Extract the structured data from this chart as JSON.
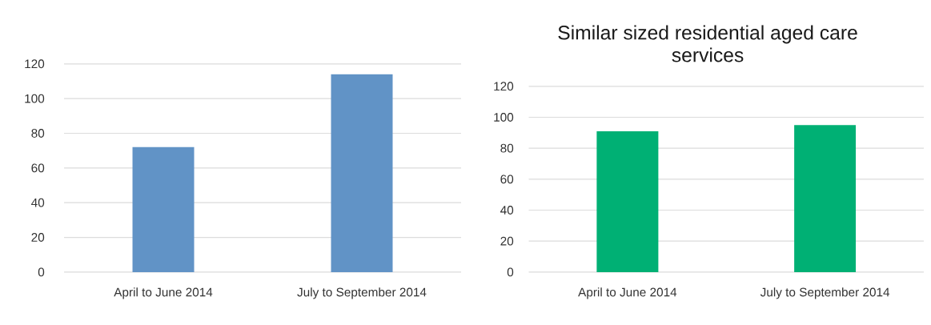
{
  "chart_data": [
    {
      "type": "bar",
      "categories": [
        "April to June 2014",
        "July to September 2014"
      ],
      "values": [
        72,
        114
      ],
      "color": "#6193c6",
      "ylim": [
        0,
        120
      ],
      "yticks": [
        0,
        20,
        40,
        60,
        80,
        100,
        120
      ],
      "grid": "y"
    },
    {
      "type": "bar",
      "title": "Similar sized residential aged care services",
      "categories": [
        "April to June 2014",
        "July to September 2014"
      ],
      "values": [
        91,
        95
      ],
      "color": "#00b074",
      "ylim": [
        0,
        120
      ],
      "yticks": [
        0,
        20,
        40,
        60,
        80,
        100,
        120
      ],
      "grid": "y"
    }
  ]
}
